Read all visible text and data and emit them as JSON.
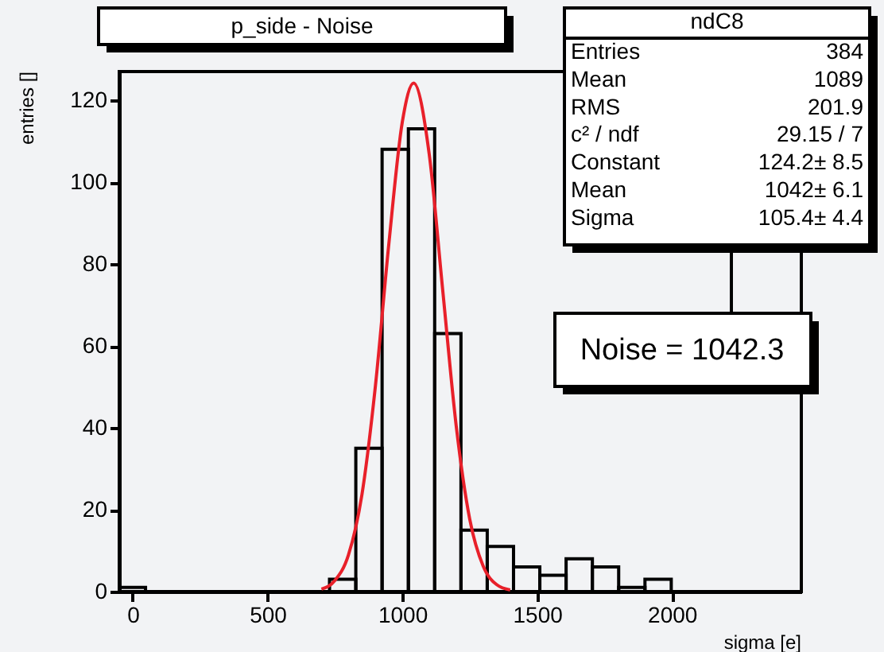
{
  "chart_data": {
    "type": "histogram",
    "title": "p_side - Noise",
    "xlabel": "sigma [e]",
    "ylabel": "entries []",
    "xlim": [
      -50,
      2480
    ],
    "ylim": [
      0,
      127
    ],
    "xticks": [
      0,
      500,
      1000,
      1500,
      2000
    ],
    "yticks": [
      0,
      20,
      40,
      60,
      80,
      100,
      120
    ],
    "grid": false,
    "series": [
      {
        "color": "#000000",
        "bins": [
          -50,
          47.5,
          145,
          242.5,
          340,
          437.5,
          535,
          632.5,
          730,
          827.5,
          925,
          1022.5,
          1120,
          1217.5,
          1315,
          1412.5,
          1510,
          1607.5,
          1705,
          1802.5,
          1900,
          1997.5
        ],
        "values": [
          1,
          0,
          0,
          0,
          0,
          0,
          0,
          0,
          3,
          35,
          108,
          113,
          63,
          15,
          11,
          6,
          4,
          8,
          6,
          1,
          3
        ]
      },
      {
        "type": "line",
        "color": "#e8202a",
        "x": [
          700,
          750,
          800,
          850,
          900,
          950,
          1000,
          1042,
          1100,
          1150,
          1200,
          1250,
          1300,
          1350,
          1400
        ],
        "values": [
          0.6,
          2.7,
          8.9,
          23.6,
          50.1,
          84.9,
          114.7,
          124.2,
          106.7,
          73.5,
          40.4,
          17.7,
          6.2,
          1.7,
          0.4
        ]
      }
    ],
    "annotations": [
      "ndC8",
      "Entries\t384",
      "Mean\t1089",
      "RMS\t201.9",
      "c² / ndf\t29.15 / 7",
      "Constant\t124.2± 8.5",
      "Mean\t1042± 6.1",
      "Sigma\t105.4± 4.4",
      "Noise = 1042.3"
    ]
  }
}
